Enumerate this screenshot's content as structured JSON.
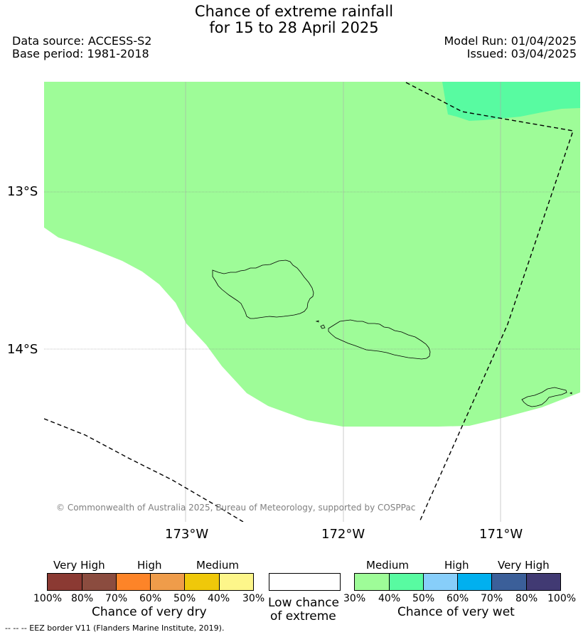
{
  "header": {
    "title_line1": "Chance of extreme rainfall",
    "title_line2": "for 15 to 28 April 2025",
    "data_source": "Data source: ACCESS-S2",
    "base_period": "Base period: 1981-2018",
    "model_run": "Model Run: 01/04/2025",
    "issued": "Issued: 03/04/2025"
  },
  "map": {
    "lat_labels": [
      "13°S",
      "14°S"
    ],
    "lon_labels": [
      "173°W",
      "172°W",
      "171°W"
    ],
    "copyright": "© Commonwealth of Australia 2025, Bureau of Meteorology, supported by COSPPac",
    "colors": {
      "medium_wet": "#9efc98",
      "medium_wet_40": "#58fba1"
    }
  },
  "legend_dry": {
    "category_labels": [
      "Very High",
      "High",
      "Medium"
    ],
    "ticks": [
      "100%",
      "80%",
      "70%",
      "60%",
      "50%",
      "40%",
      "30%"
    ],
    "title": "Chance of very dry",
    "colors": [
      "#8b3a33",
      "#8b4c3f",
      "#fd8428",
      "#ef9c4a",
      "#efc80a",
      "#fdf68a"
    ]
  },
  "legend_low": {
    "title_line1": "Low chance",
    "title_line2": "of extreme",
    "color": "#ffffff"
  },
  "legend_wet": {
    "category_labels": [
      "Medium",
      "High",
      "Very High"
    ],
    "ticks": [
      "30%",
      "40%",
      "50%",
      "60%",
      "70%",
      "80%",
      "100%"
    ],
    "title": "Chance of very wet",
    "colors": [
      "#9efc98",
      "#58fba1",
      "#87cefa",
      "#01b0ef",
      "#3b5f99",
      "#413a73"
    ]
  },
  "footnote": "--  --  -- EEZ border V11 (Flanders Marine Institute, 2019)."
}
